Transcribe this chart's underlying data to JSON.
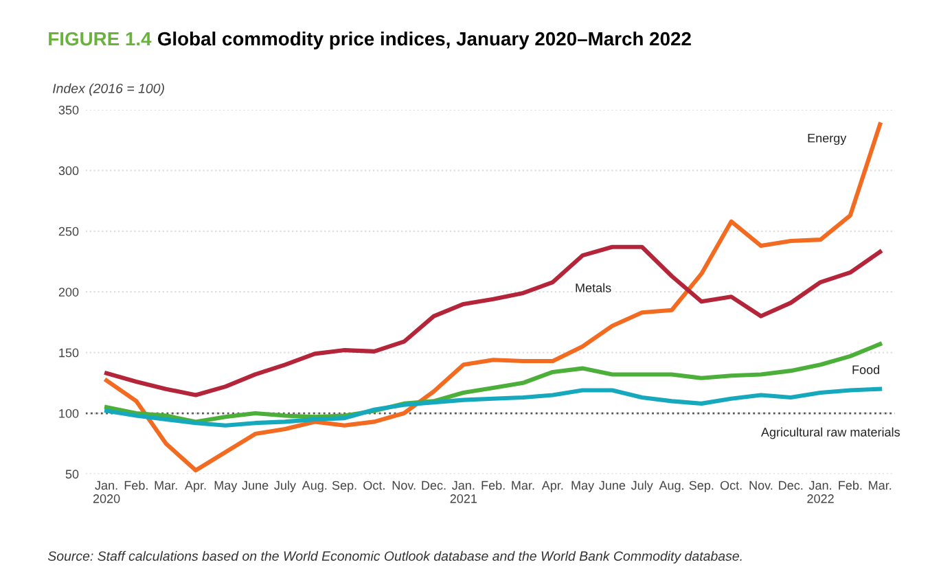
{
  "chart_data": {
    "type": "line",
    "title": "FIGURE 1.4 Global commodity price indices, January 2020–March 2022",
    "ylabel": "Index (2016 = 100)",
    "categories": [
      "Jan.\n2020",
      "Feb.",
      "Mar.",
      "Apr.",
      "May",
      "June",
      "July",
      "Aug.",
      "Sep.",
      "Oct.",
      "Nov.",
      "Dec.",
      "Jan.\n2021",
      "Feb.",
      "Mar.",
      "Apr.",
      "May",
      "June",
      "July",
      "Aug.",
      "Sep.",
      "Oct.",
      "Nov.",
      "Dec.",
      "Jan.\n2022",
      "Feb.",
      "Mar."
    ],
    "series": [
      {
        "name": "Energy",
        "color": "#f26b21",
        "values": [
          127,
          110,
          75,
          53,
          68,
          83,
          87,
          93,
          90,
          93,
          100,
          118,
          140,
          144,
          143,
          143,
          155,
          172,
          183,
          185,
          215,
          258,
          238,
          242,
          243,
          263,
          338
        ]
      },
      {
        "name": "Metals",
        "color": "#b5253a",
        "values": [
          133,
          126,
          120,
          115,
          122,
          132,
          140,
          149,
          152,
          151,
          159,
          180,
          190,
          194,
          199,
          208,
          230,
          237,
          237,
          213,
          192,
          196,
          180,
          191,
          208,
          216,
          233
        ]
      },
      {
        "name": "Food",
        "color": "#4caf3a",
        "values": [
          105,
          100,
          98,
          93,
          97,
          100,
          98,
          97,
          98,
          102,
          108,
          110,
          117,
          121,
          125,
          134,
          137,
          132,
          132,
          132,
          129,
          131,
          132,
          135,
          140,
          147,
          157
        ]
      },
      {
        "name": "Agricultural raw materials",
        "color": "#16a9be",
        "values": [
          102,
          98,
          95,
          92,
          90,
          92,
          93,
          95,
          96,
          103,
          107,
          109,
          111,
          112,
          113,
          115,
          119,
          119,
          113,
          110,
          108,
          112,
          115,
          113,
          117,
          119,
          120
        ]
      }
    ],
    "ylim": [
      50,
      350
    ],
    "yticks": [
      50,
      100,
      150,
      200,
      250,
      300,
      350
    ],
    "grid": "y",
    "legend": false,
    "marker": "none",
    "line_style": "solid",
    "ref_lines": [
      {
        "axis": "y",
        "value": 100,
        "color": "#555555",
        "line_style": "dotted"
      }
    ],
    "annotations": [
      "Source: Staff calculations based on the World Economic Outlook database and the World Bank Commodity database."
    ]
  }
}
